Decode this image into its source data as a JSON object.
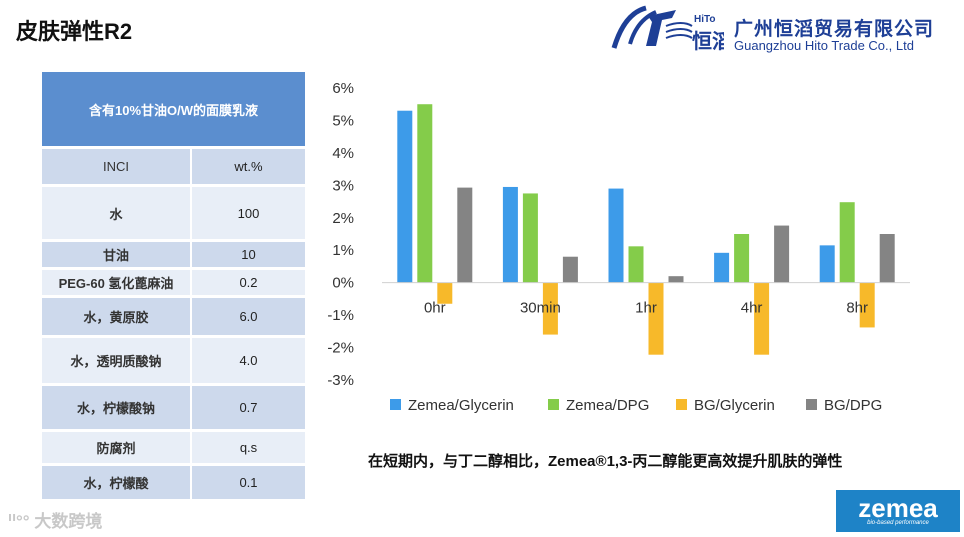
{
  "title": "皮肤弹性R2",
  "logo": {
    "company_cn": "广州恒滔贸易有限公司",
    "company_en": "Guangzhou Hito Trade Co., Ltd",
    "mark_text": "恒滔",
    "mark_small": "HiTo"
  },
  "table": {
    "header": "含有10%甘油O/W的面膜乳液",
    "col_inci": "INCI",
    "col_wt": "wt.%",
    "rows": [
      {
        "name": "水",
        "value": "100"
      },
      {
        "name": "甘油",
        "value": "10"
      },
      {
        "name": "PEG-60 氢化蓖麻油",
        "value": "0.2"
      },
      {
        "name": "水，黄原胶",
        "value": "6.0"
      },
      {
        "name": "水，透明质酸钠",
        "value": "4.0"
      },
      {
        "name": "水，柠檬酸钠",
        "value": "0.7"
      },
      {
        "name": "防腐剂",
        "value": "q.s"
      },
      {
        "name": "水，柠檬酸",
        "value": "0.1"
      }
    ]
  },
  "chart_data": {
    "type": "bar",
    "categories": [
      "0hr",
      "30min",
      "1hr",
      "4hr",
      "8hr"
    ],
    "series": [
      {
        "name": "Zemea/Glycerin",
        "color": "#3d9be9",
        "values": [
          5.3,
          2.95,
          2.9,
          0.92,
          1.15
        ]
      },
      {
        "name": "Zemea/DPG",
        "color": "#84cc4a",
        "values": [
          5.5,
          2.75,
          1.12,
          1.5,
          2.48
        ]
      },
      {
        "name": "BG/Glycerin",
        "color": "#f7b92a",
        "values": [
          -0.65,
          -1.6,
          -2.22,
          -2.22,
          -1.38
        ]
      },
      {
        "name": "BG/DPG",
        "color": "#848484",
        "values": [
          2.93,
          0.8,
          0.2,
          1.76,
          1.5
        ]
      }
    ],
    "yticks": [
      "6%",
      "5%",
      "4%",
      "3%",
      "2%",
      "1%",
      "0%",
      "-1%",
      "-2%",
      "-3%"
    ],
    "ylim": [
      -3,
      6
    ],
    "legend_position": "bottom"
  },
  "caption": "在短期内，与丁二醇相比，Zemea®1,3-丙二醇能更高效提升肌肤的弹性",
  "watermark": "大数跨境",
  "brand": {
    "name": "zemea",
    "tagline": "bio-based performance"
  }
}
